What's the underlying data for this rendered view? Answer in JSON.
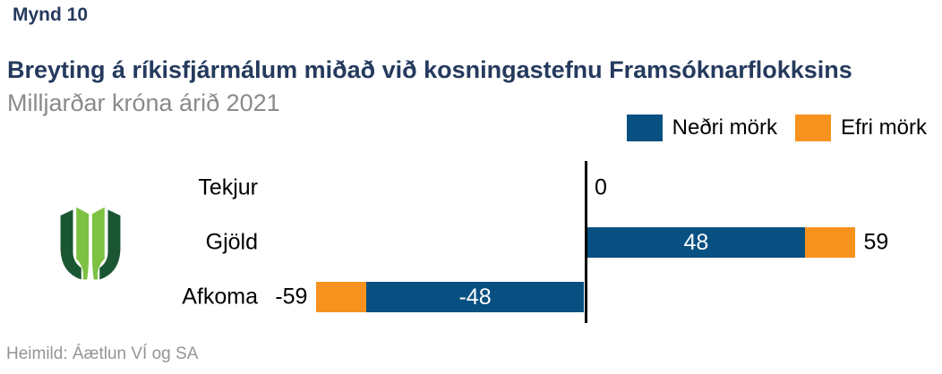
{
  "header": {
    "figure_label": "Mynd 10",
    "title": "Breyting á ríkisfjármálum miðað við kosningastefnu Framsóknarflokksins",
    "subtitle": "Milljarðar króna árið 2021"
  },
  "chart_data": {
    "type": "bar",
    "orientation": "horizontal",
    "title": "Breyting á ríkisfjármálum miðað við kosningastefnu Framsóknarflokksins",
    "subtitle": "Milljarðar króna árið 2021",
    "unit": "Milljarðar króna",
    "categories": [
      "Tekjur",
      "Gjöld",
      "Afkoma"
    ],
    "series": [
      {
        "name": "Neðri mörk",
        "color": "#075081",
        "values": [
          0,
          48,
          -48
        ]
      },
      {
        "name": "Efri mörk",
        "color": "#F7921E",
        "values": [
          0,
          59,
          -59
        ]
      }
    ],
    "inside_labels": [
      "",
      "48",
      "-48"
    ],
    "outside_labels": [
      "0",
      "59",
      "-59"
    ],
    "xlim": [
      -70,
      70
    ],
    "zero_line": true,
    "gridlines": false,
    "legend_position": "top-right"
  },
  "logo": {
    "semantic": "open-book-logo",
    "dark_green": "#1A5632",
    "light_green": "#7DC242"
  },
  "footer": {
    "source": "Heimild: Áætlun VÍ og SA"
  },
  "colors": {
    "title_navy": "#253A5E",
    "subtitle_gray": "#8A8A8A",
    "source_gray": "#959595",
    "bar_blue": "#075081",
    "bar_orange": "#F7921E",
    "label_black": "#000000",
    "background": "#FFFFFF"
  }
}
